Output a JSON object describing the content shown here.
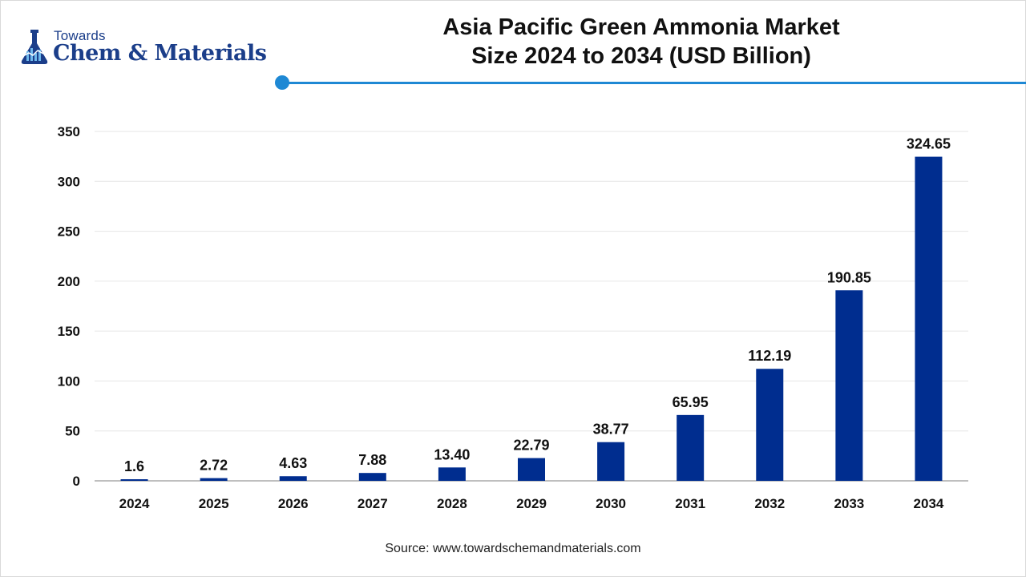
{
  "brand": {
    "line1": "Towards",
    "line2": "Chem & Materials",
    "primary_color": "#1b3e8a",
    "accent_color": "#1e88d4"
  },
  "title": {
    "line1": "Asia Pacific Green Ammonia Market",
    "line2": "Size 2024 to 2034 (USD Billion)"
  },
  "source": "Source: www.towardschemandmaterials.com",
  "chart_data": {
    "type": "bar",
    "title": "Asia Pacific Green Ammonia Market Size 2024 to 2034 (USD Billion)",
    "xlabel": "",
    "ylabel": "",
    "categories": [
      "2024",
      "2025",
      "2026",
      "2027",
      "2028",
      "2029",
      "2030",
      "2031",
      "2032",
      "2033",
      "2034"
    ],
    "values": [
      1.6,
      2.72,
      4.63,
      7.88,
      13.4,
      22.79,
      38.77,
      65.95,
      112.19,
      190.85,
      324.65
    ],
    "value_labels": [
      "1.6",
      "2.72",
      "4.63",
      "7.88",
      "13.40",
      "22.79",
      "38.77",
      "65.95",
      "112.19",
      "190.85",
      "324.65"
    ],
    "ylim": [
      0,
      350
    ],
    "yticks": [
      0,
      50,
      100,
      150,
      200,
      250,
      300,
      350
    ],
    "grid": true,
    "legend": "none",
    "bar_color": "#002d8f"
  }
}
